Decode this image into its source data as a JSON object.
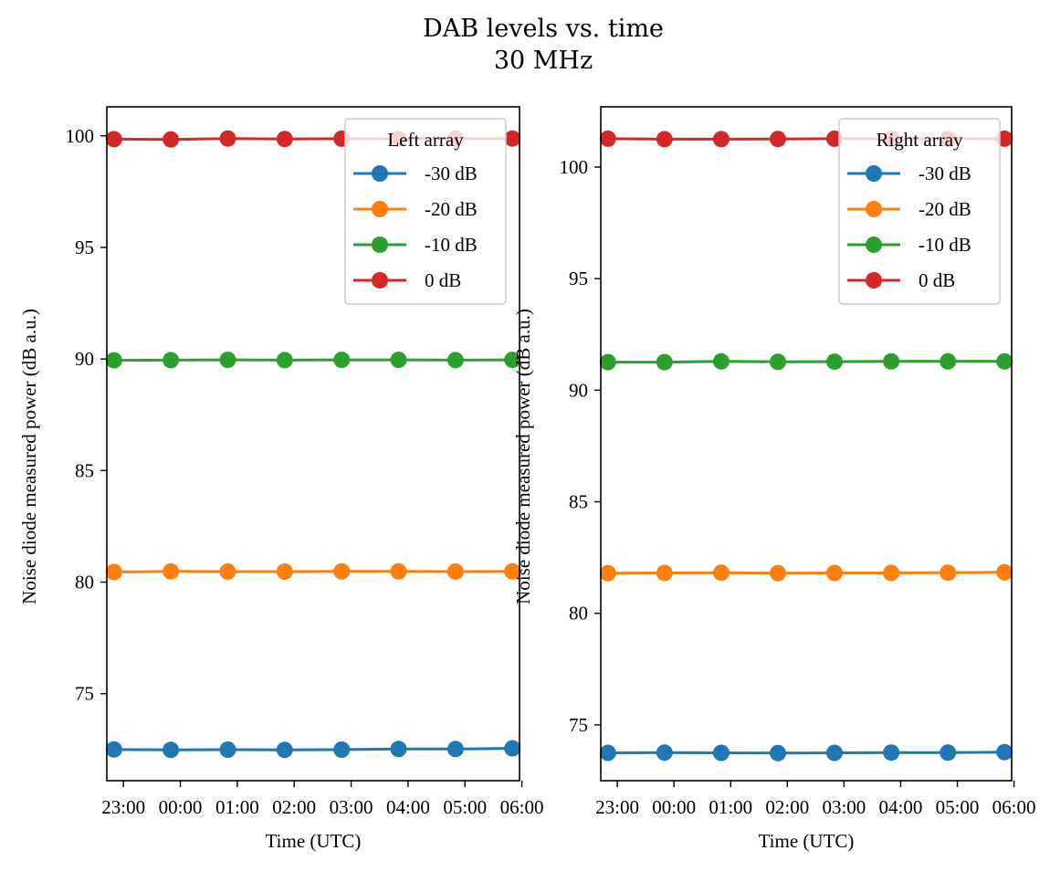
{
  "figure": {
    "title": "DAB levels vs. time",
    "subtitle": "30 MHz"
  },
  "chart_data": [
    {
      "type": "line",
      "title": "",
      "xlabel": "Time (UTC)",
      "ylabel": "Noise diode measured power (dB a.u.)",
      "x": [
        "22:50",
        "23:50",
        "00:50",
        "01:50",
        "02:50",
        "03:50",
        "04:50",
        "05:50"
      ],
      "x_ticks": [
        "23:00",
        "00:00",
        "01:00",
        "02:00",
        "03:00",
        "04:00",
        "05:00",
        "06:00"
      ],
      "y_ticks": [
        75,
        80,
        85,
        90,
        95,
        100
      ],
      "ylim": [
        71.1,
        101.3
      ],
      "grid": false,
      "legend": {
        "title": "Left array",
        "location": "upper right"
      },
      "series": [
        {
          "name": "-30 dB",
          "color": "#1f77b4",
          "values": [
            72.5,
            72.48,
            72.49,
            72.48,
            72.49,
            72.52,
            72.52,
            72.55
          ]
        },
        {
          "name": "-20 dB",
          "color": "#ff7f0e",
          "values": [
            80.45,
            80.48,
            80.47,
            80.47,
            80.48,
            80.48,
            80.47,
            80.48
          ]
        },
        {
          "name": "-10 dB",
          "color": "#2ca02c",
          "values": [
            89.94,
            89.95,
            89.96,
            89.95,
            89.96,
            89.96,
            89.95,
            89.96
          ]
        },
        {
          "name": "0 dB",
          "color": "#d62728",
          "values": [
            99.85,
            99.84,
            99.88,
            99.86,
            99.87,
            99.86,
            99.88,
            99.88
          ]
        }
      ]
    },
    {
      "type": "line",
      "title": "",
      "xlabel": "Time (UTC)",
      "ylabel": "Noise diode measured power (dB a.u.)",
      "x": [
        "22:50",
        "23:50",
        "00:50",
        "01:50",
        "02:50",
        "03:50",
        "04:50",
        "05:50"
      ],
      "x_ticks": [
        "23:00",
        "00:00",
        "01:00",
        "02:00",
        "03:00",
        "04:00",
        "05:00",
        "06:00"
      ],
      "y_ticks": [
        75,
        80,
        85,
        90,
        95,
        100
      ],
      "ylim": [
        72.5,
        102.7
      ],
      "grid": false,
      "legend": {
        "title": "Right array",
        "location": "upper right"
      },
      "series": [
        {
          "name": "-30 dB",
          "color": "#1f77b4",
          "values": [
            73.75,
            73.76,
            73.75,
            73.74,
            73.75,
            73.76,
            73.76,
            73.78
          ]
        },
        {
          "name": "-20 dB",
          "color": "#ff7f0e",
          "values": [
            81.8,
            81.81,
            81.82,
            81.8,
            81.81,
            81.81,
            81.82,
            81.84
          ]
        },
        {
          "name": "-10 dB",
          "color": "#2ca02c",
          "values": [
            91.26,
            91.26,
            91.29,
            91.27,
            91.28,
            91.29,
            91.29,
            91.29
          ]
        },
        {
          "name": "0 dB",
          "color": "#d62728",
          "values": [
            101.27,
            101.25,
            101.25,
            101.26,
            101.27,
            101.27,
            101.26,
            101.27
          ]
        }
      ]
    }
  ]
}
